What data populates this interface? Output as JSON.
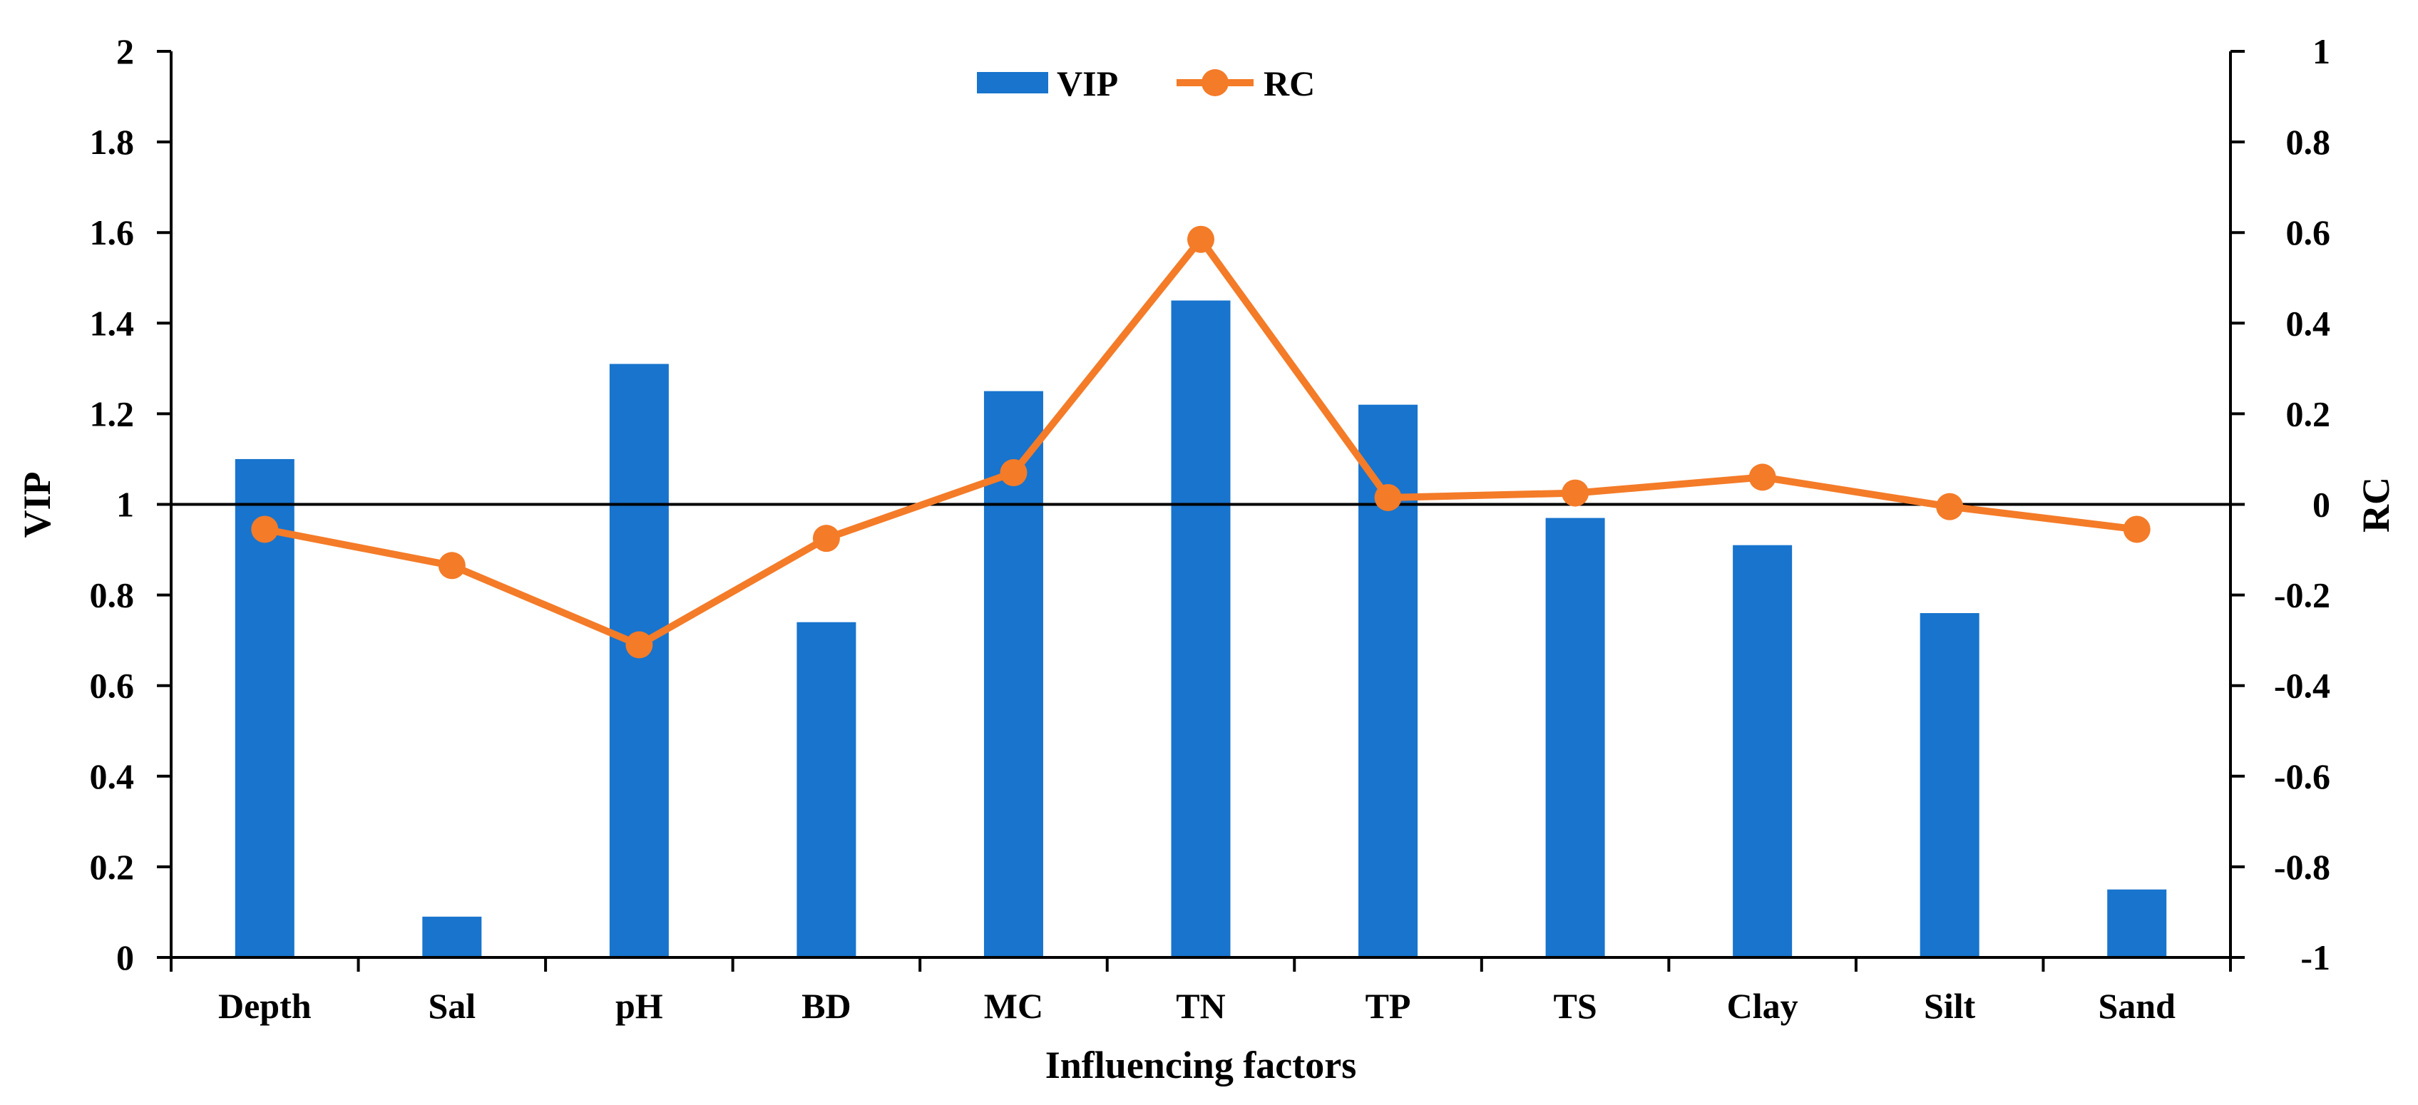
{
  "chart_data": {
    "type": "bar+line",
    "categories": [
      "Depth",
      "Sal",
      "pH",
      "BD",
      "MC",
      "TN",
      "TP",
      "TS",
      "Clay",
      "Silt",
      "Sand"
    ],
    "series": [
      {
        "name": "VIP",
        "type": "bar",
        "axis": "left",
        "color": "#1874CD",
        "values": [
          1.1,
          0.09,
          1.31,
          0.74,
          1.25,
          1.45,
          1.22,
          0.97,
          0.91,
          0.76,
          0.15
        ]
      },
      {
        "name": "RC",
        "type": "line",
        "axis": "right",
        "color": "#F47B28",
        "values": [
          -0.055,
          -0.135,
          -0.31,
          -0.075,
          0.07,
          0.585,
          0.015,
          0.025,
          0.06,
          -0.005,
          -0.055
        ]
      }
    ],
    "xlabel": "Influencing factors",
    "ylabel_left": "VIP",
    "ylabel_right": "RC",
    "ylim_left": [
      0,
      2
    ],
    "ylim_right": [
      -1,
      1
    ],
    "yticks_left": [
      "0",
      "0.2",
      "0.4",
      "0.6",
      "0.8",
      "1",
      "1.2",
      "1.4",
      "1.6",
      "1.8",
      "2"
    ],
    "yticks_right": [
      "-1",
      "-0.8",
      "-0.6",
      "-0.4",
      "-0.2",
      "0",
      "0.2",
      "0.4",
      "0.6",
      "0.8",
      "1"
    ],
    "reference_line_left": 1,
    "legend": {
      "position": "top-center",
      "entries": [
        "VIP",
        "RC"
      ]
    }
  }
}
